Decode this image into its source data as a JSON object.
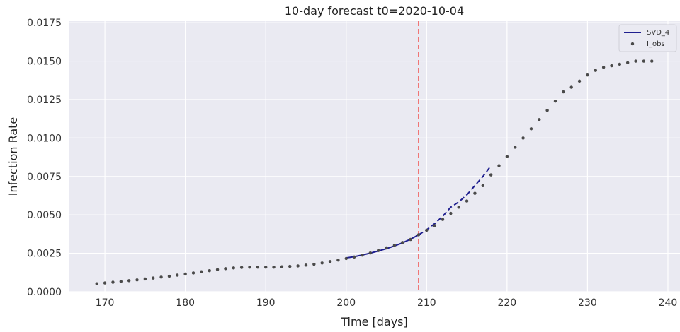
{
  "chart_data": {
    "type": "line",
    "title": "10-day forecast t0=2020-10-04",
    "xlabel": "Time [days]",
    "ylabel": "Infection Rate",
    "xlim": [
      165.5,
      241.5
    ],
    "ylim": [
      0,
      0.0176
    ],
    "xticks": [
      170,
      180,
      190,
      200,
      210,
      220,
      230,
      240
    ],
    "xtick_labels": [
      "170",
      "180",
      "190",
      "200",
      "210",
      "220",
      "230",
      "240"
    ],
    "yticks": [
      0,
      0.0025,
      0.005,
      0.0075,
      0.01,
      0.0125,
      0.015,
      0.0175
    ],
    "ytick_labels": [
      "0.0000",
      "0.0025",
      "0.0050",
      "0.0075",
      "0.0100",
      "0.0125",
      "0.0150",
      "0.0175"
    ],
    "grid": true,
    "legend_position": "top-right",
    "forecast_start_x": 209,
    "colors": {
      "background": "#eaeaf2",
      "grid": "#ffffff",
      "svd": "#1f1f8f",
      "obs": "#4a4a4a",
      "vline": "#f07070"
    },
    "series": [
      {
        "name": "SVD_4",
        "style": "line",
        "x": [
          200,
          201,
          202,
          203,
          204,
          205,
          206,
          207,
          208,
          209,
          210,
          211,
          212,
          213,
          214,
          215,
          216,
          217,
          218
        ],
        "values": [
          0.0022,
          0.00228,
          0.00239,
          0.00251,
          0.00265,
          0.0028,
          0.00298,
          0.00318,
          0.00342,
          0.0037,
          0.00403,
          0.00443,
          0.00491,
          0.0055,
          0.00584,
          0.0063,
          0.0069,
          0.0075,
          0.0082
        ]
      },
      {
        "name": "I_obs",
        "style": "points",
        "x": [
          169,
          170,
          171,
          172,
          173,
          174,
          175,
          176,
          177,
          178,
          179,
          180,
          181,
          182,
          183,
          184,
          185,
          186,
          187,
          188,
          189,
          190,
          191,
          192,
          193,
          194,
          195,
          196,
          197,
          198,
          199,
          200,
          201,
          202,
          203,
          204,
          205,
          206,
          207,
          208,
          209,
          210,
          211,
          212,
          213,
          214,
          215,
          216,
          217,
          218,
          219,
          220,
          221,
          222,
          223,
          224,
          225,
          226,
          227,
          228,
          229,
          230,
          231,
          232,
          233,
          234,
          235,
          236,
          237,
          238
        ],
        "values": [
          0.00052,
          0.00057,
          0.00062,
          0.00067,
          0.00072,
          0.00077,
          0.00083,
          0.00089,
          0.00095,
          0.00101,
          0.00108,
          0.00115,
          0.00122,
          0.0013,
          0.00137,
          0.00144,
          0.0015,
          0.00155,
          0.00158,
          0.0016,
          0.0016,
          0.0016,
          0.0016,
          0.00162,
          0.00165,
          0.00168,
          0.00173,
          0.00179,
          0.00187,
          0.00196,
          0.00206,
          0.00216,
          0.00226,
          0.00238,
          0.00252,
          0.00268,
          0.00285,
          0.00302,
          0.0032,
          0.0034,
          0.0037,
          0.004,
          0.0043,
          0.0047,
          0.0051,
          0.0055,
          0.0059,
          0.0064,
          0.0069,
          0.0076,
          0.0082,
          0.0088,
          0.0094,
          0.01,
          0.0106,
          0.0112,
          0.0118,
          0.0124,
          0.013,
          0.0133,
          0.0137,
          0.0141,
          0.0144,
          0.0146,
          0.0147,
          0.0148,
          0.0149,
          0.015,
          0.015,
          0.015
        ]
      }
    ]
  }
}
